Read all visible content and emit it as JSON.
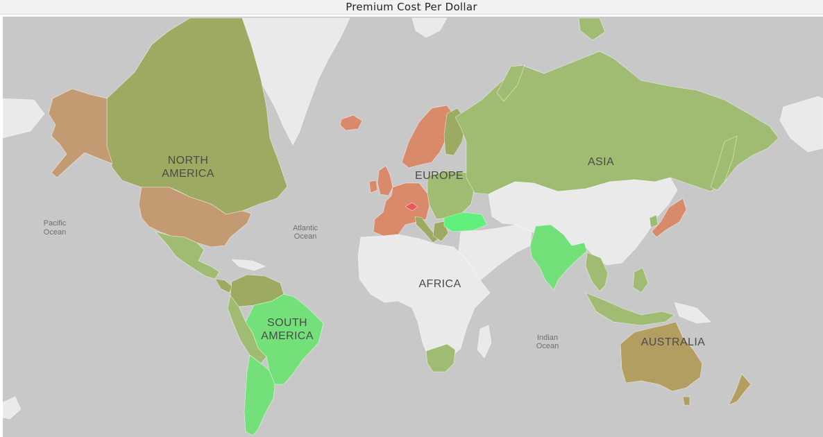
{
  "visual": {
    "title": "Premium Cost Per Dollar"
  },
  "map": {
    "colors": {
      "ocean": "#c8c8c8",
      "land_no_data": "#eaeaea",
      "olive_high": "#9daa62",
      "green_mid": "#9fbc72",
      "green_bright": "#74e07a",
      "green_brightest": "#62f07c",
      "orange": "#c49a72",
      "orange_red": "#d98a6a",
      "red": "#ea5a5a",
      "olive_dark": "#b39e62"
    },
    "continent_labels": {
      "north_america_1": "NORTH",
      "north_america_2": "AMERICA",
      "south_america_1": "SOUTH",
      "south_america_2": "AMERICA",
      "europe": "EUROPE",
      "asia": "ASIA",
      "africa": "AFRICA",
      "australia": "AUSTRALIA"
    },
    "ocean_labels": {
      "pacific_1": "Pacific",
      "pacific_2": "Ocean",
      "atlantic_1": "Atlantic",
      "atlantic_2": "Ocean",
      "indian_1": "Indian",
      "indian_2": "Ocean"
    }
  }
}
